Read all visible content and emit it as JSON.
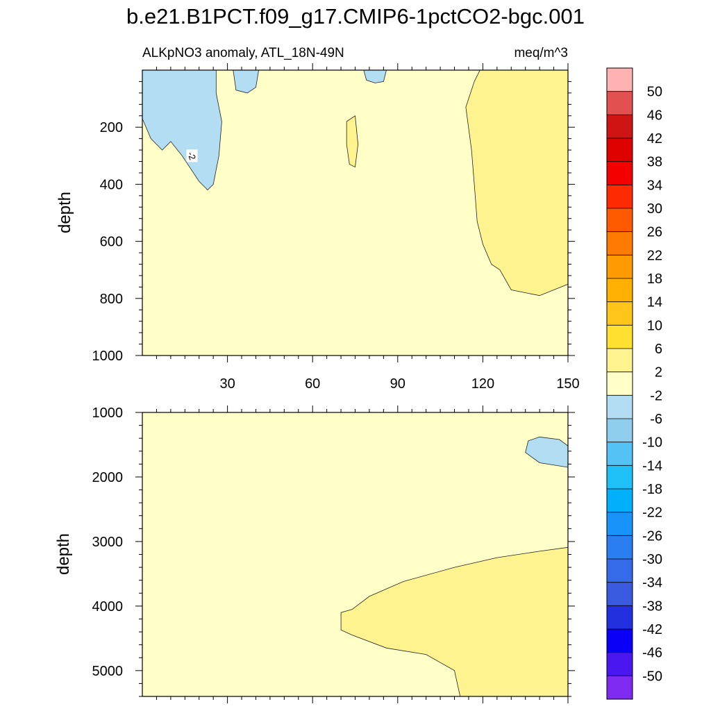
{
  "title": "b.e21.B1PCT.f09_g17.CMIP6-1pctCO2-bgc.001",
  "chart_data": [
    {
      "type": "contour",
      "panel": "upper",
      "subtitle_left": "ALKpNO3 anomaly, ATL_18N-49N",
      "subtitle_right": "meq/m^3",
      "xlabel": "",
      "ylabel": "depth",
      "xlim": [
        0,
        150
      ],
      "ylim": [
        0,
        1000
      ],
      "y_inverted": true,
      "xticks": [
        30,
        60,
        90,
        120,
        150
      ],
      "yticks": [
        200,
        400,
        600,
        800,
        1000
      ],
      "background_level": "-2 to 2",
      "regions": [
        {
          "level": "-6 to -2",
          "label": "-2",
          "outline": [
            [
              0,
              0
            ],
            [
              26,
              0
            ],
            [
              26,
              80
            ],
            [
              28,
              180
            ],
            [
              27,
              300
            ],
            [
              25,
              400
            ],
            [
              23,
              420
            ],
            [
              20,
              390
            ],
            [
              17,
              345
            ],
            [
              14,
              300
            ],
            [
              10,
              250
            ],
            [
              7,
              280
            ],
            [
              3,
              240
            ],
            [
              0,
              170
            ]
          ]
        },
        {
          "level": "-6 to -2",
          "outline": [
            [
              32,
              0
            ],
            [
              41,
              0
            ],
            [
              40,
              60
            ],
            [
              37,
              80
            ],
            [
              33,
              70
            ]
          ]
        },
        {
          "level": "-6 to -2",
          "outline": [
            [
              78,
              0
            ],
            [
              86,
              0
            ],
            [
              85,
              40
            ],
            [
              82,
              45
            ],
            [
              79,
              35
            ]
          ]
        },
        {
          "level": "2 to 6",
          "outline": [
            [
              72,
              180
            ],
            [
              75,
              160
            ],
            [
              76,
              260
            ],
            [
              75,
              340
            ],
            [
              73,
              330
            ],
            [
              72,
              260
            ]
          ]
        },
        {
          "level": "2 to 6",
          "outline": [
            [
              119,
              0
            ],
            [
              150,
              0
            ],
            [
              150,
              750
            ],
            [
              145,
              770
            ],
            [
              140,
              790
            ],
            [
              135,
              780
            ],
            [
              130,
              770
            ],
            [
              126,
              700
            ],
            [
              123,
              680
            ],
            [
              120,
              610
            ],
            [
              118,
              530
            ],
            [
              117,
              400
            ],
            [
              116,
              280
            ],
            [
              114,
              130
            ],
            [
              117,
              40
            ]
          ]
        }
      ]
    },
    {
      "type": "contour",
      "panel": "lower",
      "xlabel": "",
      "ylabel": "depth",
      "xlim": [
        0,
        150
      ],
      "ylim": [
        1000,
        5400
      ],
      "y_inverted": true,
      "yticks": [
        1000,
        2000,
        3000,
        4000,
        5000
      ],
      "background_level": "-2 to 2",
      "regions": [
        {
          "level": "-6 to -2",
          "outline": [
            [
              150,
              1520
            ],
            [
              147,
              1420
            ],
            [
              140,
              1380
            ],
            [
              136,
              1440
            ],
            [
              135,
              1620
            ],
            [
              140,
              1780
            ],
            [
              150,
              1850
            ]
          ]
        },
        {
          "level": "2 to 6",
          "outline": [
            [
              150,
              3090
            ],
            [
              140,
              3150
            ],
            [
              125,
              3250
            ],
            [
              110,
              3400
            ],
            [
              92,
              3620
            ],
            [
              80,
              3850
            ],
            [
              74,
              4050
            ],
            [
              70,
              4100
            ],
            [
              70,
              4370
            ],
            [
              74,
              4450
            ],
            [
              86,
              4650
            ],
            [
              100,
              4750
            ],
            [
              110,
              5000
            ],
            [
              112,
              5400
            ],
            [
              150,
              5400
            ]
          ]
        }
      ]
    }
  ],
  "colorbar": {
    "labels": [
      "50",
      "46",
      "42",
      "38",
      "34",
      "30",
      "26",
      "22",
      "18",
      "14",
      "10",
      "6",
      "2",
      "-2",
      "-6",
      "-10",
      "-14",
      "-18",
      "-22",
      "-26",
      "-30",
      "-34",
      "-38",
      "-42",
      "-46",
      "-50"
    ],
    "colors": [
      "#ffb2b2",
      "#e35050",
      "#cf1414",
      "#df0000",
      "#f50000",
      "#ff2b00",
      "#ff5a00",
      "#ff7a00",
      "#ff9a00",
      "#ffb000",
      "#ffc51a",
      "#ffe030",
      "#fff390",
      "#ffffc8",
      "#b3ddf3",
      "#8fcded",
      "#55c2f5",
      "#1fbff7",
      "#00b0fa",
      "#1893fa",
      "#2a7ef0",
      "#356ae8",
      "#3a5ae0",
      "#2230e0",
      "#0a00f8",
      "#4a17f0",
      "#7f2af0"
    ]
  },
  "level_colors": {
    "-6 to -2": "#b3ddf3",
    "-2 to 2": "#ffffc8",
    "2 to 6": "#fff390"
  }
}
